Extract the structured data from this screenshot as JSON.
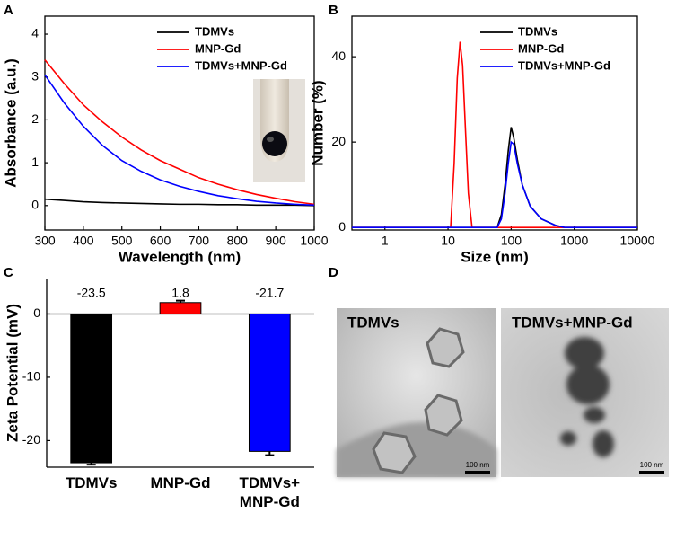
{
  "panel_labels": [
    "A",
    "B",
    "C",
    "D"
  ],
  "chart_data": [
    {
      "type": "line",
      "x_label": "Wavelength (nm)",
      "y_label": "Absorbance (a.u.)",
      "x": [
        300,
        350,
        400,
        450,
        500,
        550,
        600,
        650,
        700,
        750,
        800,
        850,
        900,
        950,
        1000
      ],
      "series": [
        {
          "name": "TDMVs",
          "color": "#000000",
          "values": [
            0.15,
            0.12,
            0.09,
            0.07,
            0.06,
            0.05,
            0.04,
            0.03,
            0.03,
            0.02,
            0.02,
            0.01,
            0.01,
            0.01,
            0
          ]
        },
        {
          "name": "MNP-Gd",
          "color": "#ff0000",
          "values": [
            3.4,
            2.85,
            2.35,
            1.95,
            1.6,
            1.3,
            1.05,
            0.85,
            0.65,
            0.5,
            0.37,
            0.26,
            0.17,
            0.09,
            0.03
          ]
        },
        {
          "name": "TDMVs+MNP-Gd",
          "color": "#0000ff",
          "values": [
            3.05,
            2.4,
            1.85,
            1.4,
            1.05,
            0.8,
            0.6,
            0.45,
            0.33,
            0.23,
            0.16,
            0.1,
            0.06,
            0.03,
            0.01
          ]
        }
      ],
      "xlim": [
        300,
        1000
      ],
      "xticks": [
        300,
        400,
        500,
        600,
        700,
        800,
        900,
        1000
      ],
      "ylim": [
        -0.57,
        4.42
      ],
      "yticks": [
        0,
        1,
        2,
        3,
        4
      ],
      "legend": "upper right"
    },
    {
      "type": "line",
      "x_label": "Size (nm)",
      "y_label": "Number (%)",
      "log_x": true,
      "series": [
        {
          "name": "TDMVs",
          "color": "#000000",
          "x": [
            0.3,
            60,
            70,
            80,
            90,
            100,
            110,
            125,
            150,
            200,
            300,
            500,
            700,
            10000
          ],
          "values": [
            0,
            0,
            3,
            10,
            18,
            23.5,
            21,
            16,
            10,
            5,
            2,
            0.5,
            0,
            0
          ]
        },
        {
          "name": "MNP-Gd",
          "color": "#ff0000",
          "x": [
            0.3,
            11,
            12.5,
            14,
            15.5,
            17,
            19,
            21,
            24,
            30,
            100,
            10000
          ],
          "values": [
            0,
            0,
            15,
            35,
            43.5,
            38,
            22,
            8,
            0,
            0,
            0,
            0
          ]
        },
        {
          "name": "TDMVs+MNP-Gd",
          "color": "#0000ff",
          "x": [
            0.3,
            60,
            70,
            80,
            90,
            100,
            110,
            125,
            150,
            200,
            300,
            500,
            700,
            10000
          ],
          "values": [
            0,
            0,
            2,
            8,
            15,
            20,
            19.5,
            15,
            10,
            5,
            2,
            0.5,
            0,
            0
          ]
        }
      ],
      "xlim": [
        0.3,
        10000
      ],
      "xticks": [
        1,
        10,
        100,
        1000,
        10000
      ],
      "ylim": [
        -0.6,
        49.5
      ],
      "yticks": [
        0,
        20,
        40
      ],
      "legend": "upper right"
    },
    {
      "type": "bar",
      "y_label": "Zeta Potential (mV)",
      "categories": [
        "TDMVs",
        "MNP-Gd",
        "TDMVs+\nMNP-Gd"
      ],
      "values": [
        -23.5,
        1.8,
        -21.7
      ],
      "errors": [
        0.3,
        0.3,
        0.6
      ],
      "colors": [
        "#000000",
        "#ff0000",
        "#0000ff"
      ],
      "ylim": [
        -24.2,
        5.6
      ],
      "yticks": [
        0,
        -10,
        -20
      ]
    }
  ],
  "images": [
    {
      "label": "TDMVs",
      "scale_bar": "100 nm"
    },
    {
      "label": "TDMVs+MNP-Gd",
      "scale_bar": "100 nm"
    }
  ]
}
